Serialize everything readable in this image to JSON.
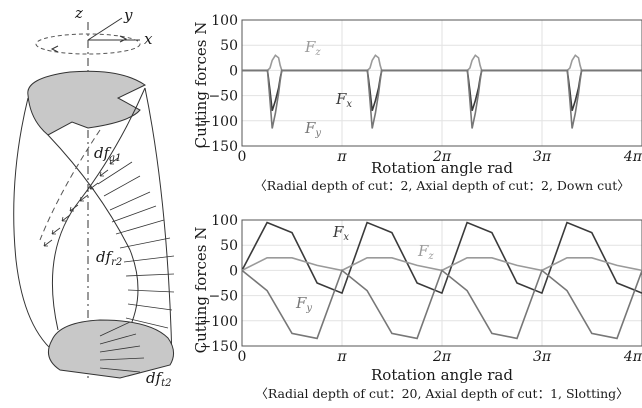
{
  "illustration": {
    "axes": {
      "z": "z",
      "y": "y",
      "x": "x"
    },
    "labels": {
      "dfa1": {
        "main": "df",
        "sub": "a1"
      },
      "dfr2": {
        "main": "df",
        "sub": "r2"
      },
      "dft2": {
        "main": "df",
        "sub": "t2"
      }
    }
  },
  "chart_data": [
    {
      "type": "line",
      "ylabel": "Cutting forces N",
      "xlabel": "Rotation angle rad",
      "caption": "〈Radial depth of cut：2,  Axial depth of cut：2,  Down cut〉",
      "ylim": [
        -150,
        100
      ],
      "yticks": [
        "100",
        "50",
        "0",
        "−50",
        "−100",
        "−150"
      ],
      "xlim": [
        0,
        12.566
      ],
      "xtick_labels": [
        "0",
        "π",
        "2π",
        "3π",
        "4π"
      ],
      "grid": true,
      "series": [
        {
          "name": "F",
          "sub": "z",
          "color": "#9a9a9a",
          "x": [
            0.0,
            0.5,
            0.55,
            0.6,
            0.7,
            0.75,
            0.8,
            0.88,
            0.95,
            1.05,
            1.15,
            1.2,
            1.25,
            3.14,
            3.64,
            3.69,
            3.74,
            3.84,
            3.89,
            3.94,
            4.02,
            4.09,
            4.19,
            4.29,
            4.34,
            4.39,
            6.28,
            6.78,
            6.83,
            6.88,
            6.98,
            7.03,
            7.08,
            7.16,
            7.23,
            7.33,
            7.43,
            7.48,
            7.53,
            9.42,
            9.92,
            9.97,
            10.02,
            10.12,
            10.17,
            10.22,
            10.3,
            10.37,
            10.47,
            10.57,
            10.62,
            10.67,
            12.566
          ],
          "y": [
            0,
            0,
            0,
            0,
            0,
            0,
            0,
            5,
            20,
            30,
            25,
            10,
            0,
            0,
            0,
            0,
            0,
            0,
            0,
            0,
            5,
            20,
            30,
            25,
            10,
            0,
            0,
            0,
            0,
            0,
            0,
            0,
            0,
            5,
            20,
            30,
            25,
            10,
            0,
            0,
            0,
            0,
            0,
            0,
            0,
            0,
            5,
            20,
            30,
            25,
            10,
            0,
            0
          ]
        },
        {
          "name": "F",
          "sub": "x",
          "color": "#3a3a3a",
          "x": [
            0.0,
            0.5,
            0.55,
            0.6,
            0.7,
            0.75,
            0.8,
            0.88,
            0.95,
            1.05,
            1.15,
            1.2,
            1.25,
            3.14,
            3.64,
            3.69,
            3.74,
            3.84,
            3.89,
            3.94,
            4.02,
            4.09,
            4.19,
            4.29,
            4.34,
            4.39,
            6.28,
            6.78,
            6.83,
            6.88,
            6.98,
            7.03,
            7.08,
            7.16,
            7.23,
            7.33,
            7.43,
            7.48,
            7.53,
            9.42,
            9.92,
            9.97,
            10.02,
            10.12,
            10.17,
            10.22,
            10.3,
            10.37,
            10.47,
            10.57,
            10.62,
            10.67,
            12.566
          ],
          "y": [
            0,
            0,
            0,
            0,
            0,
            0,
            0,
            -40,
            -80,
            -60,
            -35,
            -15,
            0,
            0,
            0,
            0,
            0,
            0,
            0,
            0,
            -40,
            -80,
            -60,
            -35,
            -15,
            0,
            0,
            0,
            0,
            0,
            0,
            0,
            0,
            -40,
            -80,
            -60,
            -35,
            -15,
            0,
            0,
            0,
            0,
            0,
            0,
            0,
            0,
            -40,
            -80,
            -60,
            -35,
            -15,
            0,
            0
          ]
        },
        {
          "name": "F",
          "sub": "y",
          "color": "#777777",
          "x": [
            0.0,
            0.5,
            0.55,
            0.6,
            0.7,
            0.75,
            0.8,
            0.88,
            0.95,
            1.05,
            1.15,
            1.2,
            1.25,
            3.14,
            3.64,
            3.69,
            3.74,
            3.84,
            3.89,
            3.94,
            4.02,
            4.09,
            4.19,
            4.29,
            4.34,
            4.39,
            6.28,
            6.78,
            6.83,
            6.88,
            6.98,
            7.03,
            7.08,
            7.16,
            7.23,
            7.33,
            7.43,
            7.48,
            7.53,
            9.42,
            9.92,
            9.97,
            10.02,
            10.12,
            10.17,
            10.22,
            10.3,
            10.37,
            10.47,
            10.57,
            10.62,
            10.67,
            12.566
          ],
          "y": [
            0,
            0,
            0,
            0,
            0,
            0,
            0,
            -60,
            -115,
            -85,
            -45,
            -20,
            0,
            0,
            0,
            0,
            0,
            0,
            0,
            0,
            -60,
            -115,
            -85,
            -45,
            -20,
            0,
            0,
            0,
            0,
            0,
            0,
            0,
            0,
            -60,
            -115,
            -85,
            -45,
            -20,
            0,
            0,
            0,
            0,
            0,
            0,
            0,
            0,
            -60,
            -115,
            -85,
            -45,
            -20,
            0,
            0
          ]
        }
      ]
    },
    {
      "type": "line",
      "ylabel": "Cutting forces N",
      "xlabel": "Rotation angle rad",
      "caption": "〈Radial depth of cut：20,  Axial depth of cut：1,  Slotting〉",
      "ylim": [
        -150,
        100
      ],
      "yticks": [
        "100",
        "50",
        "0",
        "−50",
        "−100",
        "−150"
      ],
      "xlim": [
        0,
        12.566
      ],
      "xtick_labels": [
        "0",
        "π",
        "2π",
        "3π",
        "4π"
      ],
      "grid": true,
      "series": [
        {
          "name": "F",
          "sub": "x",
          "color": "#3a3a3a",
          "x": [
            0.0,
            0.79,
            1.57,
            2.36,
            3.14,
            3.93,
            4.71,
            5.5,
            6.28,
            7.07,
            7.85,
            8.64,
            9.42,
            10.21,
            10.99,
            11.78,
            12.57
          ],
          "y": [
            0,
            95,
            75,
            -25,
            -45,
            95,
            75,
            -25,
            -45,
            95,
            75,
            -25,
            -45,
            95,
            75,
            -25,
            -45
          ]
        },
        {
          "name": "F",
          "sub": "z",
          "color": "#9a9a9a",
          "x": [
            0.0,
            0.79,
            1.57,
            2.36,
            3.14,
            3.93,
            4.71,
            5.5,
            6.28,
            7.07,
            7.85,
            8.64,
            9.42,
            10.21,
            10.99,
            11.78,
            12.57
          ],
          "y": [
            0,
            25,
            25,
            10,
            0,
            25,
            25,
            10,
            0,
            25,
            25,
            10,
            0,
            25,
            25,
            10,
            0
          ]
        },
        {
          "name": "F",
          "sub": "y",
          "color": "#777777",
          "x": [
            0.0,
            0.79,
            1.57,
            2.36,
            3.14,
            3.93,
            4.71,
            5.5,
            6.28,
            7.07,
            7.85,
            8.64,
            9.42,
            10.21,
            10.99,
            11.78,
            12.57
          ],
          "y": [
            0,
            -40,
            -125,
            -135,
            0,
            -40,
            -125,
            -135,
            0,
            -40,
            -125,
            -135,
            0,
            -40,
            -125,
            -135,
            0
          ]
        }
      ]
    }
  ]
}
